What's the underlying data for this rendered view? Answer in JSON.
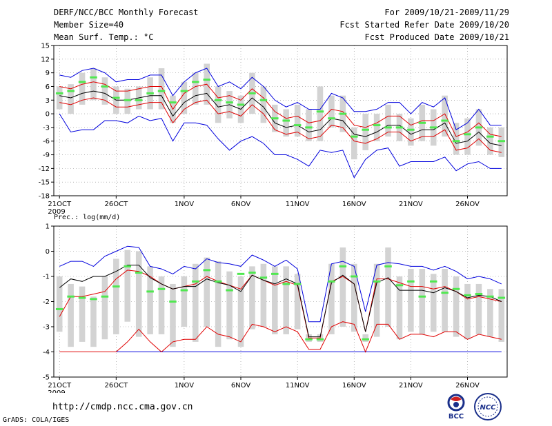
{
  "header": {
    "title": "DERF/NCC/BCC Monthly Forecast",
    "member_size": "Member Size=40",
    "variable": "Mean Surf. Temp.: °C",
    "period": "For 2009/10/21-2009/11/29",
    "started": "Fcst Started Refer Date 2009/10/20",
    "produced": "Fcst Produced Date 2009/10/21"
  },
  "footer": {
    "url": "http://cmdp.ncc.cma.gov.cn",
    "grads": "GrADS: COLA/IGES",
    "logo_left_text": "BCC",
    "logo_right_text": "NCC"
  },
  "colors": {
    "box": "#d3d3d3",
    "median": "#50e850",
    "mean": "#000000",
    "sd": "#e00000",
    "ext": "#0000dd",
    "grid": "#888888"
  },
  "chart_data": [
    {
      "type": "box-line",
      "title": "Mean Surf. Temp.: °C",
      "ylim": [
        -18,
        15
      ],
      "yticks": [
        -18,
        -15,
        -12,
        -9,
        -6,
        -3,
        0,
        3,
        6,
        9,
        12,
        15
      ],
      "xlim": [
        -0.5,
        39.5
      ],
      "xticks": [
        {
          "i": 0,
          "label": "21OCT"
        },
        {
          "i": 5,
          "label": "26OCT"
        },
        {
          "i": 11,
          "label": "1NOV"
        },
        {
          "i": 16,
          "label": "6NOV"
        },
        {
          "i": 21,
          "label": "11NOV"
        },
        {
          "i": 26,
          "label": "16NOV"
        },
        {
          "i": 31,
          "label": "21NOV"
        },
        {
          "i": 36,
          "label": "26NOV"
        }
      ],
      "year_label": "2009",
      "series": {
        "max": [
          8.5,
          8.0,
          9.5,
          10.0,
          9.0,
          7.0,
          7.5,
          7.5,
          8.5,
          8.5,
          4.0,
          7.0,
          9.0,
          10.0,
          6.0,
          7.0,
          5.5,
          8.0,
          6.0,
          3.0,
          1.5,
          2.5,
          1.0,
          1.0,
          4.5,
          3.5,
          0.5,
          0.5,
          1.0,
          2.5,
          2.5,
          0.0,
          2.5,
          1.5,
          3.5,
          -3.5,
          -2.0,
          1.0,
          -2.5,
          -2.5
        ],
        "mean_p": [
          6.0,
          5.5,
          6.5,
          7.0,
          6.5,
          5.0,
          5.0,
          5.5,
          6.0,
          6.0,
          1.0,
          4.5,
          6.0,
          6.5,
          3.5,
          4.0,
          3.0,
          5.5,
          3.5,
          0.5,
          -1.0,
          -0.5,
          -2.0,
          -1.5,
          1.0,
          0.5,
          -2.5,
          -3.0,
          -2.0,
          -0.5,
          -0.5,
          -2.5,
          -1.5,
          -1.5,
          0.0,
          -5.0,
          -4.0,
          -2.0,
          -4.5,
          -5.0
        ],
        "mean": [
          4.0,
          3.5,
          4.5,
          5.0,
          4.5,
          3.0,
          3.0,
          3.5,
          4.0,
          4.0,
          -0.5,
          2.5,
          4.0,
          4.5,
          1.5,
          2.0,
          1.0,
          3.5,
          1.5,
          -2.0,
          -3.0,
          -2.5,
          -4.0,
          -3.5,
          -1.0,
          -1.5,
          -4.5,
          -5.0,
          -4.0,
          -2.5,
          -2.5,
          -4.5,
          -3.5,
          -3.5,
          -2.0,
          -6.5,
          -6.0,
          -4.0,
          -6.5,
          -7.0
        ],
        "mean_m": [
          2.5,
          2.0,
          3.0,
          3.5,
          3.0,
          1.5,
          1.5,
          2.0,
          2.5,
          2.5,
          -2.0,
          1.0,
          2.5,
          3.0,
          0.0,
          0.5,
          -0.5,
          2.0,
          0.0,
          -3.5,
          -4.5,
          -4.0,
          -5.5,
          -5.0,
          -2.5,
          -3.0,
          -6.0,
          -6.5,
          -5.5,
          -4.0,
          -4.0,
          -6.0,
          -5.0,
          -5.0,
          -3.5,
          -8.0,
          -7.5,
          -5.5,
          -8.0,
          -8.5
        ],
        "min": [
          0.0,
          -4.0,
          -3.5,
          -3.5,
          -1.5,
          -1.5,
          -2.0,
          -0.5,
          -1.5,
          -1.0,
          -6.0,
          -2.0,
          -2.0,
          -2.5,
          -5.5,
          -8.0,
          -6.0,
          -5.0,
          -6.5,
          -9.0,
          -9.0,
          -10.0,
          -11.5,
          -8.0,
          -8.5,
          -8.0,
          -14.0,
          -10.0,
          -8.0,
          -7.5,
          -11.5,
          -10.5,
          -10.5,
          -10.5,
          -9.5,
          -12.5,
          -11.0,
          -10.5,
          -12.0,
          -12.0
        ],
        "median": [
          4.5,
          5.0,
          7.0,
          8.0,
          6.0,
          3.5,
          3.0,
          3.0,
          4.5,
          5.0,
          2.5,
          5.0,
          7.0,
          7.5,
          3.0,
          2.5,
          2.0,
          4.5,
          3.0,
          -1.0,
          -1.5,
          -2.5,
          -3.0,
          0.5,
          -1.0,
          0.0,
          -5.0,
          -3.5,
          -2.5,
          -3.0,
          -3.0,
          -3.5,
          -2.0,
          -3.0,
          -1.5,
          -6.0,
          -4.5,
          -3.0,
          -5.0,
          -6.0
        ],
        "q_low": [
          1.0,
          0.0,
          2.0,
          3.0,
          2.0,
          0.0,
          0.0,
          1.0,
          1.0,
          1.0,
          -2.0,
          0.0,
          2.0,
          2.0,
          -2.0,
          -1.0,
          -2.0,
          0.0,
          -2.0,
          -4.0,
          -5.0,
          -5.0,
          -6.0,
          -6.0,
          -3.0,
          -4.0,
          -10.0,
          -8.0,
          -6.0,
          -5.0,
          -6.0,
          -7.0,
          -6.0,
          -7.0,
          -5.0,
          -9.0,
          -9.0,
          -7.0,
          -9.0,
          -9.5
        ],
        "q_high": [
          6.0,
          6.5,
          9.0,
          10.0,
          8.0,
          6.0,
          5.5,
          6.0,
          8.0,
          10.0,
          4.0,
          7.0,
          9.0,
          11.0,
          6.0,
          5.0,
          4.0,
          9.0,
          6.0,
          2.0,
          1.0,
          2.0,
          1.0,
          6.0,
          4.0,
          4.0,
          -3.0,
          0.0,
          0.0,
          2.0,
          0.0,
          -1.0,
          2.0,
          1.0,
          4.0,
          -2.0,
          -1.0,
          1.0,
          -3.0,
          -3.0
        ]
      }
    },
    {
      "type": "box-line",
      "title": "Prec.: log(mm/d)",
      "ylim": [
        -5,
        1
      ],
      "yticks": [
        -5,
        -4,
        -3,
        -2,
        -1,
        0,
        1
      ],
      "xlim": [
        -0.5,
        39.5
      ],
      "xticks": [
        {
          "i": 0,
          "label": "21OCT"
        },
        {
          "i": 5,
          "label": "26OCT"
        },
        {
          "i": 11,
          "label": "1NOV"
        },
        {
          "i": 16,
          "label": "6NOV"
        },
        {
          "i": 21,
          "label": "11NOV"
        },
        {
          "i": 26,
          "label": "16NOV"
        },
        {
          "i": 31,
          "label": "21NOV"
        },
        {
          "i": 36,
          "label": "26NOV"
        }
      ],
      "year_label": "2009",
      "series": {
        "max": [
          -0.6,
          -0.4,
          -0.4,
          -0.6,
          -0.2,
          0.0,
          0.2,
          0.15,
          -0.6,
          -0.7,
          -0.9,
          -0.6,
          -0.7,
          -0.3,
          -0.45,
          -0.5,
          -0.6,
          -0.15,
          -0.35,
          -0.6,
          -0.35,
          -0.7,
          -2.8,
          -2.8,
          -0.5,
          -0.4,
          -0.6,
          -2.4,
          -0.55,
          -0.45,
          -0.5,
          -0.6,
          -0.6,
          -0.75,
          -0.6,
          -0.8,
          -1.1,
          -1.0,
          -1.1,
          -1.3
        ],
        "mean_p": [
          -2.6,
          -1.8,
          -1.8,
          -1.7,
          -1.6,
          -1.1,
          -0.75,
          -0.8,
          -1.0,
          -1.3,
          -1.5,
          -1.4,
          -1.3,
          -1.0,
          -1.2,
          -1.35,
          -1.5,
          -0.95,
          -1.15,
          -1.35,
          -1.2,
          -1.35,
          -3.45,
          -3.45,
          -1.2,
          -1.0,
          -1.3,
          -3.2,
          -1.1,
          -1.1,
          -1.25,
          -1.4,
          -1.4,
          -1.5,
          -1.4,
          -1.6,
          -1.9,
          -1.8,
          -1.9,
          -2.0
        ],
        "mean": [
          -1.45,
          -1.1,
          -1.2,
          -1.0,
          -1.0,
          -0.8,
          -0.55,
          -0.55,
          -1.05,
          -1.3,
          -1.5,
          -1.4,
          -1.4,
          -1.1,
          -1.25,
          -1.35,
          -1.6,
          -0.95,
          -1.15,
          -1.3,
          -1.1,
          -1.3,
          -3.4,
          -3.4,
          -1.25,
          -0.95,
          -1.3,
          -3.2,
          -1.25,
          -1.05,
          -1.55,
          -1.55,
          -1.55,
          -1.65,
          -1.45,
          -1.6,
          -1.85,
          -1.75,
          -1.8,
          -2.0
        ],
        "mean_m": [
          -4.0,
          -4.0,
          -4.0,
          -4.0,
          -4.0,
          -4.0,
          -3.6,
          -3.1,
          -3.6,
          -4.0,
          -3.6,
          -3.5,
          -3.5,
          -3.0,
          -3.3,
          -3.4,
          -3.6,
          -2.9,
          -3.0,
          -3.2,
          -3.0,
          -3.2,
          -3.9,
          -3.9,
          -3.0,
          -2.8,
          -2.9,
          -4.0,
          -2.9,
          -2.9,
          -3.5,
          -3.3,
          -3.3,
          -3.4,
          -3.2,
          -3.2,
          -3.5,
          -3.3,
          -3.4,
          -3.5
        ],
        "min": [
          -4.0,
          -4.0,
          -4.0,
          -4.0,
          -4.0,
          -4.0,
          -4.0,
          -4.0,
          -4.0,
          -4.0,
          -4.0,
          -4.0,
          -4.0,
          -4.0,
          -4.0,
          -4.0,
          -4.0,
          -4.0,
          -4.0,
          -4.0,
          -4.0,
          -4.0,
          -4.0,
          -4.0,
          -4.0,
          -4.0,
          -4.0,
          -4.0,
          -4.0,
          -4.0,
          -4.0,
          -4.0,
          -4.0,
          -4.0,
          -4.0,
          -4.0,
          -4.0,
          -4.0,
          -4.0,
          -4.0
        ],
        "median": [
          -2.3,
          -1.8,
          -1.85,
          -1.9,
          -1.8,
          -1.4,
          -0.6,
          -0.85,
          -1.6,
          -1.5,
          -2.0,
          -1.55,
          -1.2,
          -0.75,
          -1.2,
          -1.55,
          -0.9,
          -0.85,
          -1.05,
          -0.9,
          -1.3,
          -1.3,
          -3.5,
          -3.5,
          -1.2,
          -0.6,
          -1.0,
          -3.5,
          -1.2,
          -0.6,
          -1.35,
          -1.2,
          -1.8,
          -1.2,
          -1.65,
          -1.5,
          -1.75,
          -1.7,
          -1.8,
          -1.85
        ],
        "q_low": [
          -3.2,
          -3.8,
          -3.6,
          -3.8,
          -3.5,
          -3.3,
          -2.8,
          -3.4,
          -3.3,
          -3.3,
          -3.8,
          -3.0,
          -3.6,
          -3.0,
          -3.8,
          -3.5,
          -3.8,
          -3.1,
          -3.0,
          -3.3,
          -3.3,
          -3.1,
          -3.6,
          -3.6,
          -3.3,
          -3.0,
          -3.2,
          -3.6,
          -3.4,
          -3.0,
          -3.5,
          -3.2,
          -3.3,
          -3.2,
          -3.2,
          -3.4,
          -3.5,
          -3.3,
          -3.4,
          -3.6
        ],
        "q_high": [
          -1.0,
          -1.3,
          -1.4,
          -1.8,
          -1.0,
          -0.3,
          0.05,
          0.0,
          -0.6,
          -1.0,
          -1.3,
          -1.0,
          -0.5,
          -0.25,
          -0.4,
          -0.8,
          -1.0,
          -0.6,
          -0.5,
          -0.6,
          -0.6,
          -0.9,
          -3.3,
          -3.3,
          -0.5,
          0.15,
          -0.5,
          -3.3,
          -0.5,
          0.15,
          -1.0,
          -0.7,
          -0.7,
          -0.9,
          -0.7,
          -1.0,
          -1.3,
          -1.3,
          -1.5,
          -1.5
        ]
      }
    }
  ]
}
